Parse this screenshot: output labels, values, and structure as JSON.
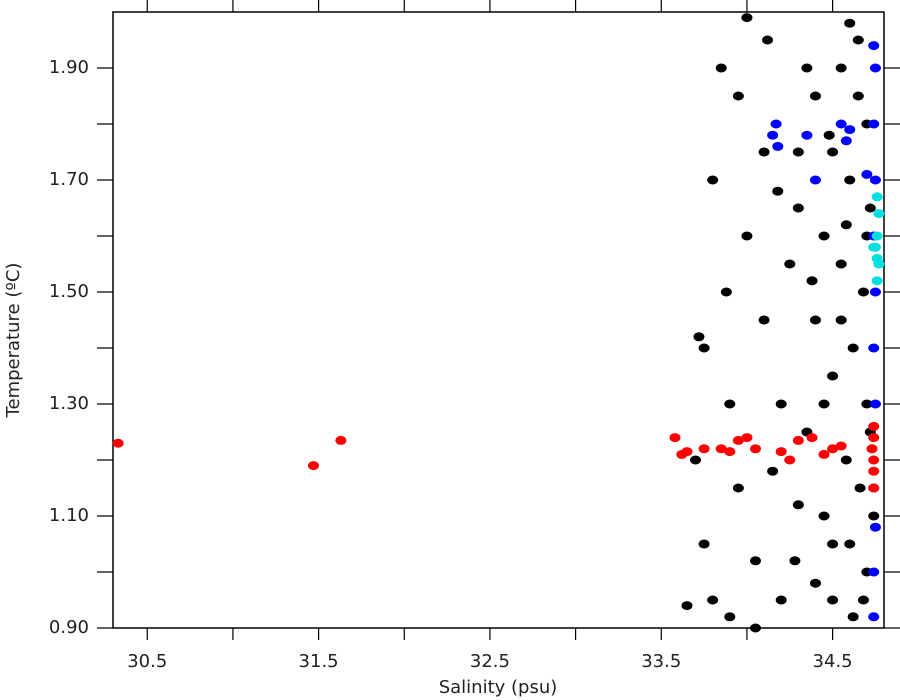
{
  "chart_data": {
    "type": "scatter",
    "xlabel": "Salinity (psu)",
    "ylabel": "Temperature (ºC)",
    "xlim": [
      30.3,
      34.8
    ],
    "ylim": [
      0.9,
      2.0
    ],
    "xticks": [
      30.5,
      31.5,
      32.5,
      33.5,
      34.5
    ],
    "xminorticks": [
      31.0,
      32.0,
      33.0,
      34.0
    ],
    "yticks": [
      {
        "value": 0.9,
        "label": "0.90"
      },
      {
        "value": 1.1,
        "label": "1.10"
      },
      {
        "value": 1.3,
        "label": "1.30"
      },
      {
        "value": 1.5,
        "label": "1.50"
      },
      {
        "value": 1.7,
        "label": "1.70"
      },
      {
        "value": 1.9,
        "label": "1.90"
      }
    ],
    "yminorticks": [
      1.0,
      1.2,
      1.4,
      1.6,
      1.8
    ],
    "series": [
      {
        "color": "#000000",
        "x": [
          34.6,
          34.55,
          34.65,
          34.7,
          34.5,
          34.6,
          34.72,
          34.45,
          34.55,
          34.68,
          34.4,
          34.62,
          34.5,
          34.7,
          34.35,
          34.58,
          34.66,
          34.45,
          34.6,
          34.7,
          34.5,
          34.62,
          34.4,
          34.3,
          34.2,
          34.1,
          34.0,
          33.95,
          33.85,
          34.0,
          33.8,
          33.75,
          33.75,
          33.8,
          33.9,
          34.05,
          34.15,
          34.25,
          34.3,
          34.35,
          33.7,
          33.65,
          33.72,
          34.05,
          34.2,
          34.3,
          34.4,
          34.45,
          34.5,
          34.55,
          34.65,
          34.7,
          34.72,
          34.74,
          34.68,
          34.58,
          34.48,
          34.38,
          34.28,
          34.18,
          33.9,
          33.95,
          34.1,
          33.88,
          34.12
        ],
        "values": [
          1.98,
          1.9,
          1.85,
          1.8,
          1.75,
          1.7,
          1.65,
          1.6,
          1.55,
          1.5,
          1.45,
          1.4,
          1.35,
          1.3,
          1.25,
          1.2,
          1.15,
          1.1,
          1.05,
          1.0,
          0.95,
          0.92,
          0.98,
          1.12,
          1.3,
          1.45,
          1.6,
          1.85,
          1.9,
          1.99,
          1.7,
          1.4,
          1.05,
          0.95,
          0.92,
          1.02,
          1.18,
          1.55,
          1.75,
          1.9,
          1.2,
          0.94,
          1.42,
          0.9,
          0.95,
          1.65,
          1.85,
          1.3,
          1.05,
          1.45,
          1.95,
          1.6,
          1.25,
          1.1,
          0.95,
          1.62,
          1.78,
          1.52,
          1.02,
          1.68,
          1.3,
          1.15,
          1.75,
          1.5,
          1.95
        ]
      },
      {
        "color": "#0000ff",
        "x": [
          34.74,
          34.74,
          34.75,
          34.74,
          34.75,
          34.74,
          34.75,
          34.74,
          34.75,
          34.74,
          34.75,
          34.74,
          34.55,
          34.6,
          34.58,
          34.15,
          34.18,
          34.17,
          34.4,
          34.7,
          34.35
        ],
        "values": [
          0.92,
          1.0,
          1.08,
          1.15,
          1.3,
          1.4,
          1.5,
          1.6,
          1.7,
          1.8,
          1.9,
          1.94,
          1.8,
          1.79,
          1.77,
          1.78,
          1.76,
          1.8,
          1.7,
          1.71,
          1.78
        ]
      },
      {
        "color": "#00e0e0",
        "x": [
          34.76,
          34.76,
          34.76,
          34.77,
          34.76,
          34.75,
          34.77,
          34.74
        ],
        "values": [
          1.52,
          1.56,
          1.6,
          1.64,
          1.67,
          1.58,
          1.55,
          1.58
        ]
      },
      {
        "color": "#ff0000",
        "x": [
          30.33,
          31.47,
          31.63,
          33.58,
          33.62,
          33.65,
          33.75,
          33.85,
          33.9,
          33.95,
          34.0,
          34.05,
          34.2,
          34.25,
          34.3,
          34.38,
          34.45,
          34.5,
          34.55,
          34.74,
          34.74,
          34.74,
          34.74,
          34.74,
          34.73
        ],
        "values": [
          1.23,
          1.19,
          1.235,
          1.24,
          1.21,
          1.215,
          1.22,
          1.22,
          1.215,
          1.235,
          1.24,
          1.22,
          1.215,
          1.2,
          1.235,
          1.24,
          1.21,
          1.22,
          1.225,
          1.26,
          1.2,
          1.15,
          1.24,
          1.18,
          1.22
        ]
      }
    ]
  }
}
